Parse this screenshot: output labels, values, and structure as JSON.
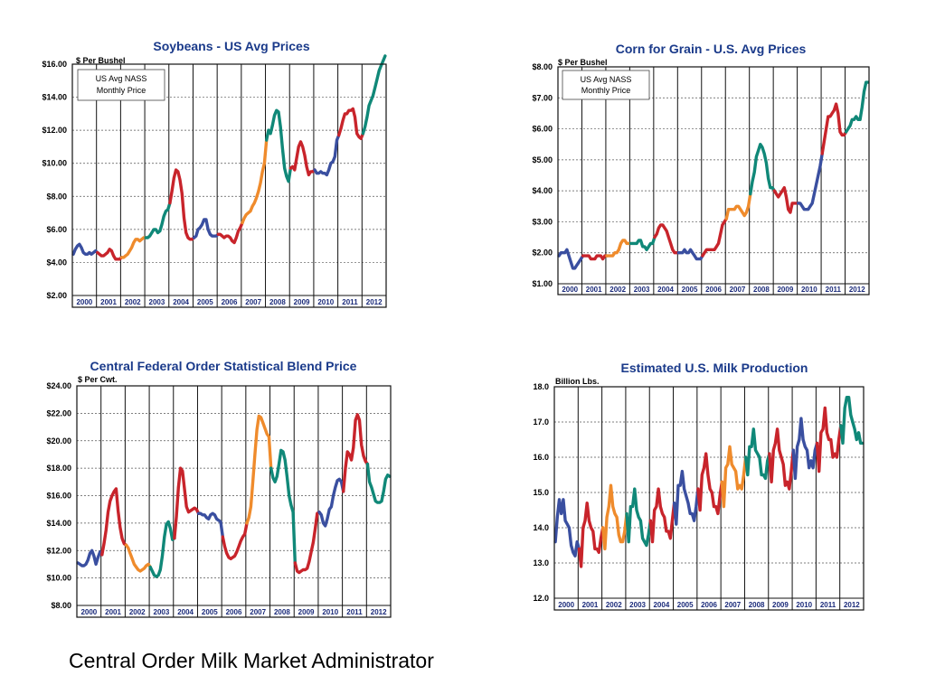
{
  "colors": {
    "2000": "#3a4fa0",
    "2001": "#c8242b",
    "2002": "#ef8b2c",
    "2003": "#108878",
    "2004": "#c8242b",
    "2005": "#3a4fa0",
    "2006": "#c8242b",
    "2007": "#ef8b2c",
    "2008": "#108878",
    "2009": "#c8242b",
    "2010": "#3a4fa0",
    "2011": "#c8242b",
    "2012": "#108878",
    "title": "#1a3a8a",
    "year_label": "#1a2a7a"
  },
  "footer": {
    "caption": "Central Order Milk Market Administrator"
  },
  "chart_data": [
    {
      "type": "line",
      "title": "Soybeans - US Avg Prices",
      "ylabel": "$ Per Bushel",
      "legend": [
        "US Avg NASS",
        "Monthly Price"
      ],
      "legend_position": "top-left",
      "ylim": [
        2,
        16
      ],
      "y_ticks": [
        "$2.00",
        "$4.00",
        "$6.00",
        "$8.00",
        "$10.00",
        "$12.00",
        "$14.00",
        "$16.00"
      ],
      "years": [
        "2000",
        "2001",
        "2002",
        "2003",
        "2004",
        "2005",
        "2006",
        "2007",
        "2008",
        "2009",
        "2010",
        "2011",
        "2012"
      ],
      "grid": true,
      "series": [
        {
          "year": "2000",
          "values": [
            4.5,
            4.8,
            5.0,
            5.1,
            4.9,
            4.6,
            4.5,
            4.5,
            4.6,
            4.5,
            4.6,
            4.7
          ]
        },
        {
          "year": "2001",
          "values": [
            4.6,
            4.5,
            4.4,
            4.4,
            4.5,
            4.6,
            4.8,
            4.7,
            4.4,
            4.2,
            4.2,
            4.2
          ]
        },
        {
          "year": "2002",
          "values": [
            4.3,
            4.3,
            4.4,
            4.5,
            4.7,
            4.9,
            5.2,
            5.4,
            5.4,
            5.3,
            5.4,
            5.5
          ]
        },
        {
          "year": "2003",
          "values": [
            5.5,
            5.5,
            5.6,
            5.8,
            6.0,
            6.0,
            5.8,
            5.9,
            6.3,
            6.8,
            7.1,
            7.2
          ]
        },
        {
          "year": "2004",
          "values": [
            7.6,
            8.3,
            9.1,
            9.6,
            9.5,
            9.0,
            8.2,
            6.7,
            5.8,
            5.5,
            5.4,
            5.4
          ]
        },
        {
          "year": "2005",
          "values": [
            5.5,
            5.6,
            6.0,
            6.1,
            6.3,
            6.6,
            6.6,
            6.0,
            5.7,
            5.6,
            5.6,
            5.6
          ]
        },
        {
          "year": "2006",
          "values": [
            5.7,
            5.7,
            5.6,
            5.5,
            5.6,
            5.6,
            5.5,
            5.3,
            5.2,
            5.5,
            5.9,
            6.1
          ]
        },
        {
          "year": "2007",
          "values": [
            6.4,
            6.7,
            6.9,
            7.0,
            7.1,
            7.4,
            7.6,
            7.9,
            8.3,
            8.8,
            9.5,
            10.0
          ]
        },
        {
          "year": "2008",
          "values": [
            11.4,
            12.0,
            11.8,
            12.3,
            12.9,
            13.2,
            13.1,
            12.2,
            10.9,
            9.7,
            9.2,
            8.9
          ]
        },
        {
          "year": "2009",
          "values": [
            9.7,
            9.8,
            9.6,
            10.3,
            11.0,
            11.3,
            11.0,
            10.5,
            9.8,
            9.3,
            9.5,
            9.5
          ]
        },
        {
          "year": "2010",
          "values": [
            9.6,
            9.4,
            9.4,
            9.5,
            9.4,
            9.4,
            9.3,
            9.6,
            10.0,
            10.1,
            10.4,
            11.4
          ]
        },
        {
          "year": "2011",
          "values": [
            11.7,
            12.1,
            12.6,
            13.0,
            13.0,
            13.2,
            13.2,
            13.3,
            12.8,
            11.8,
            11.6,
            11.5
          ]
        },
        {
          "year": "2012",
          "values": [
            11.8,
            12.2,
            12.8,
            13.5,
            13.8,
            14.1,
            14.6,
            15.1,
            15.6,
            15.9,
            16.2,
            16.5
          ]
        }
      ]
    },
    {
      "type": "line",
      "title": "Corn for Grain - U.S. Avg Prices",
      "ylabel": "$ Per Bushel",
      "legend": [
        "US Avg NASS",
        "Monthly Price"
      ],
      "legend_position": "top-left",
      "ylim": [
        1,
        8
      ],
      "y_ticks": [
        "$1.00",
        "$2.00",
        "$3.00",
        "$4.00",
        "$5.00",
        "$6.00",
        "$7.00",
        "$8.00"
      ],
      "years": [
        "2000",
        "2001",
        "2002",
        "2003",
        "2004",
        "2005",
        "2006",
        "2007",
        "2008",
        "2009",
        "2010",
        "2011",
        "2012"
      ],
      "grid": true,
      "series": [
        {
          "year": "2000",
          "values": [
            1.9,
            2.0,
            2.0,
            2.0,
            2.1,
            1.9,
            1.7,
            1.5,
            1.5,
            1.6,
            1.7,
            1.8
          ]
        },
        {
          "year": "2001",
          "values": [
            1.9,
            1.9,
            1.9,
            1.9,
            1.8,
            1.8,
            1.8,
            1.9,
            1.9,
            1.9,
            1.8,
            1.9
          ]
        },
        {
          "year": "2002",
          "values": [
            1.9,
            1.9,
            1.9,
            1.9,
            2.0,
            2.0,
            2.1,
            2.3,
            2.4,
            2.4,
            2.3,
            2.3
          ]
        },
        {
          "year": "2003",
          "values": [
            2.3,
            2.3,
            2.3,
            2.3,
            2.4,
            2.4,
            2.2,
            2.2,
            2.1,
            2.2,
            2.3,
            2.3
          ]
        },
        {
          "year": "2004",
          "values": [
            2.5,
            2.6,
            2.8,
            2.9,
            2.9,
            2.8,
            2.7,
            2.5,
            2.3,
            2.1,
            2.0,
            2.0
          ]
        },
        {
          "year": "2005",
          "values": [
            2.0,
            2.0,
            2.0,
            2.1,
            2.0,
            2.0,
            2.1,
            2.0,
            1.9,
            1.8,
            1.8,
            1.8
          ]
        },
        {
          "year": "2006",
          "values": [
            1.9,
            2.0,
            2.1,
            2.1,
            2.1,
            2.1,
            2.1,
            2.2,
            2.3,
            2.6,
            2.9,
            3.0
          ]
        },
        {
          "year": "2007",
          "values": [
            3.1,
            3.4,
            3.4,
            3.4,
            3.4,
            3.5,
            3.5,
            3.4,
            3.3,
            3.2,
            3.3,
            3.5
          ]
        },
        {
          "year": "2008",
          "values": [
            3.9,
            4.3,
            4.6,
            5.1,
            5.3,
            5.5,
            5.4,
            5.2,
            4.9,
            4.4,
            4.1,
            4.1
          ]
        },
        {
          "year": "2009",
          "values": [
            4.0,
            3.9,
            3.8,
            3.9,
            4.0,
            4.1,
            3.8,
            3.4,
            3.3,
            3.6,
            3.6,
            3.6
          ]
        },
        {
          "year": "2010",
          "values": [
            3.6,
            3.6,
            3.5,
            3.4,
            3.4,
            3.4,
            3.5,
            3.6,
            3.9,
            4.2,
            4.5,
            4.8
          ]
        },
        {
          "year": "2011",
          "values": [
            5.2,
            5.6,
            6.0,
            6.4,
            6.4,
            6.5,
            6.6,
            6.8,
            6.5,
            5.9,
            5.8,
            5.8
          ]
        },
        {
          "year": "2012",
          "values": [
            5.9,
            6.0,
            6.1,
            6.3,
            6.3,
            6.4,
            6.3,
            6.3,
            6.7,
            7.2,
            7.5,
            7.5
          ]
        }
      ]
    },
    {
      "type": "line",
      "title": "Central Federal Order Statistical Blend Price",
      "ylabel": "$ Per Cwt.",
      "ylim": [
        8,
        24
      ],
      "y_ticks": [
        "$8.00",
        "$10.00",
        "$12.00",
        "$14.00",
        "$16.00",
        "$18.00",
        "$20.00",
        "$22.00",
        "$24.00"
      ],
      "years": [
        "2000",
        "2001",
        "2002",
        "2003",
        "2004",
        "2005",
        "2006",
        "2007",
        "2008",
        "2009",
        "2010",
        "2011",
        "2012"
      ],
      "grid": true,
      "series": [
        {
          "year": "2000",
          "values": [
            11.1,
            11.0,
            10.9,
            10.9,
            11.0,
            11.3,
            11.8,
            12.0,
            11.6,
            11.0,
            11.5,
            11.9
          ]
        },
        {
          "year": "2001",
          "values": [
            11.7,
            12.5,
            13.5,
            14.8,
            15.6,
            16.0,
            16.3,
            16.5,
            14.9,
            13.7,
            12.9,
            12.5
          ]
        },
        {
          "year": "2002",
          "values": [
            12.4,
            12.2,
            11.8,
            11.4,
            11.0,
            10.8,
            10.6,
            10.5,
            10.6,
            10.7,
            10.9,
            11.0
          ]
        },
        {
          "year": "2003",
          "values": [
            10.8,
            10.5,
            10.2,
            10.1,
            10.2,
            10.6,
            11.6,
            13.0,
            13.9,
            14.1,
            13.6,
            12.8
          ]
        },
        {
          "year": "2004",
          "values": [
            12.9,
            14.5,
            16.6,
            18.0,
            17.8,
            16.5,
            15.2,
            14.8,
            14.9,
            15.0,
            15.1,
            15.0
          ]
        },
        {
          "year": "2005",
          "values": [
            14.7,
            14.7,
            14.6,
            14.6,
            14.4,
            14.3,
            14.6,
            14.7,
            14.6,
            14.3,
            14.2,
            14.1
          ]
        },
        {
          "year": "2006",
          "values": [
            13.0,
            12.3,
            11.8,
            11.5,
            11.4,
            11.5,
            11.6,
            11.9,
            12.3,
            12.7,
            13.0,
            13.2
          ]
        },
        {
          "year": "2007",
          "values": [
            14.0,
            14.4,
            15.2,
            17.0,
            19.0,
            20.8,
            21.8,
            21.7,
            21.3,
            20.9,
            20.5,
            20.3
          ]
        },
        {
          "year": "2008",
          "values": [
            18.0,
            17.3,
            17.0,
            17.4,
            18.3,
            19.3,
            19.2,
            18.6,
            17.4,
            16.0,
            15.3,
            14.8
          ]
        },
        {
          "year": "2009",
          "values": [
            11.1,
            10.5,
            10.4,
            10.5,
            10.6,
            10.6,
            10.7,
            11.2,
            11.9,
            12.6,
            13.6,
            14.7
          ]
        },
        {
          "year": "2010",
          "values": [
            14.8,
            14.6,
            14.0,
            13.8,
            14.3,
            15.0,
            15.2,
            16.0,
            16.6,
            17.1,
            17.2,
            17.0
          ]
        },
        {
          "year": "2011",
          "values": [
            16.3,
            18.0,
            19.2,
            19.0,
            18.6,
            19.5,
            21.5,
            21.9,
            21.5,
            19.7,
            18.9,
            18.5
          ]
        },
        {
          "year": "2012",
          "values": [
            18.3,
            17.0,
            16.6,
            16.1,
            15.6,
            15.5,
            15.5,
            15.6,
            16.3,
            17.2,
            17.5,
            17.4
          ]
        }
      ]
    },
    {
      "type": "line",
      "title": "Estimated U.S. Milk Production",
      "ylabel": "Billion Lbs.",
      "ylim": [
        12,
        18
      ],
      "y_ticks": [
        "12.0",
        "13.0",
        "14.0",
        "15.0",
        "16.0",
        "17.0",
        "18.0"
      ],
      "years": [
        "2000",
        "2001",
        "2002",
        "2003",
        "2004",
        "2005",
        "2006",
        "2007",
        "2008",
        "2009",
        "2010",
        "2011",
        "2012"
      ],
      "grid": true,
      "series": [
        {
          "year": "2000",
          "values": [
            13.6,
            14.3,
            14.8,
            14.4,
            14.8,
            14.2,
            14.1,
            14.0,
            13.5,
            13.3,
            13.2,
            13.6
          ]
        },
        {
          "year": "2001",
          "values": [
            13.4,
            12.9,
            14.0,
            14.2,
            14.7,
            14.2,
            14.0,
            13.9,
            13.4,
            13.4,
            13.3,
            13.7
          ]
        },
        {
          "year": "2002",
          "values": [
            14.0,
            13.4,
            14.3,
            14.6,
            15.2,
            14.6,
            14.4,
            14.3,
            13.8,
            13.6,
            13.6,
            13.9
          ]
        },
        {
          "year": "2003",
          "values": [
            14.4,
            13.6,
            14.6,
            14.6,
            15.1,
            14.5,
            14.3,
            14.2,
            13.7,
            13.6,
            13.5,
            13.8
          ]
        },
        {
          "year": "2004",
          "values": [
            14.2,
            13.6,
            14.5,
            14.6,
            15.1,
            14.6,
            14.4,
            14.3,
            13.9,
            13.9,
            13.7,
            14.2
          ]
        },
        {
          "year": "2005",
          "values": [
            14.7,
            14.1,
            15.2,
            15.2,
            15.6,
            15.1,
            14.9,
            14.7,
            14.4,
            14.4,
            14.2,
            14.6
          ]
        },
        {
          "year": "2006",
          "values": [
            15.1,
            14.5,
            15.5,
            15.7,
            16.1,
            15.5,
            15.1,
            15.0,
            14.6,
            14.6,
            14.4,
            14.9
          ]
        },
        {
          "year": "2007",
          "values": [
            15.3,
            14.6,
            15.7,
            15.8,
            16.3,
            15.8,
            15.7,
            15.6,
            15.1,
            15.2,
            15.1,
            15.5
          ]
        },
        {
          "year": "2008",
          "values": [
            16.0,
            15.5,
            16.3,
            16.3,
            16.8,
            16.2,
            16.1,
            16.0,
            15.5,
            15.5,
            15.4,
            15.9
          ]
        },
        {
          "year": "2009",
          "values": [
            16.1,
            15.3,
            16.2,
            16.4,
            16.8,
            16.2,
            16.0,
            15.8,
            15.2,
            15.3,
            15.1,
            15.6
          ]
        },
        {
          "year": "2010",
          "values": [
            16.2,
            15.4,
            16.3,
            16.5,
            17.1,
            16.5,
            16.3,
            16.2,
            15.7,
            15.9,
            15.7,
            16.2
          ]
        },
        {
          "year": "2011",
          "values": [
            16.4,
            15.6,
            16.7,
            16.8,
            17.4,
            16.7,
            16.5,
            16.5,
            16.0,
            16.1,
            16.0,
            16.5
          ]
        },
        {
          "year": "2012",
          "values": [
            16.9,
            16.4,
            17.4,
            17.7,
            17.7,
            17.2,
            17.0,
            16.8,
            16.5,
            16.7,
            16.4,
            16.4
          ]
        }
      ]
    }
  ]
}
